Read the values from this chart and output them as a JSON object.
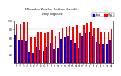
{
  "title": "Milwaukee Weather Outdoor Humidity",
  "subtitle": "Daily High/Low",
  "high_color": "#ff0000",
  "low_color": "#0000cc",
  "background_color": "#ffffff",
  "grid_color": "#cccccc",
  "ylim": [
    0,
    100
  ],
  "yticks": [
    20,
    40,
    60,
    80,
    100
  ],
  "days": [
    1,
    2,
    3,
    4,
    5,
    6,
    7,
    8,
    9,
    10,
    11,
    12,
    13,
    14,
    15,
    16,
    17,
    18,
    19,
    20,
    21,
    22,
    23,
    24,
    25,
    26,
    27,
    28
  ],
  "highs": [
    93,
    93,
    97,
    97,
    62,
    61,
    72,
    73,
    71,
    75,
    78,
    66,
    72,
    83,
    86,
    87,
    86,
    91,
    70,
    92,
    95,
    96,
    82,
    82,
    75,
    72,
    74,
    81
  ],
  "lows": [
    68,
    55,
    55,
    52,
    27,
    25,
    37,
    32,
    28,
    37,
    49,
    33,
    35,
    57,
    62,
    66,
    56,
    48,
    35,
    63,
    71,
    73,
    64,
    51,
    44,
    44,
    46,
    55
  ]
}
